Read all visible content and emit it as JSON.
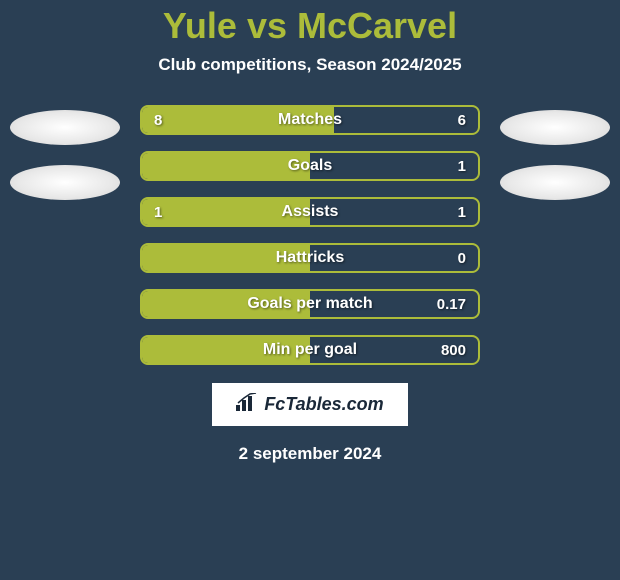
{
  "title": "Yule vs McCarvel",
  "subtitle": "Club competitions, Season 2024/2025",
  "date": "2 september 2024",
  "logo": {
    "icon": "📊",
    "text": "FcTables.com"
  },
  "colors": {
    "background": "#2a3f54",
    "accent": "#acbc3a",
    "text": "#ffffff",
    "logo_bg": "#ffffff",
    "logo_text": "#1a2838"
  },
  "stats": [
    {
      "label": "Matches",
      "left_value": "8",
      "right_value": "6",
      "left_fill_pct": 57,
      "right_fill_pct": 0
    },
    {
      "label": "Goals",
      "left_value": "",
      "right_value": "1",
      "left_fill_pct": 50,
      "right_fill_pct": 0
    },
    {
      "label": "Assists",
      "left_value": "1",
      "right_value": "1",
      "left_fill_pct": 50,
      "right_fill_pct": 0
    },
    {
      "label": "Hattricks",
      "left_value": "",
      "right_value": "0",
      "left_fill_pct": 50,
      "right_fill_pct": 0
    },
    {
      "label": "Goals per match",
      "left_value": "",
      "right_value": "0.17",
      "left_fill_pct": 50,
      "right_fill_pct": 0
    },
    {
      "label": "Min per goal",
      "left_value": "",
      "right_value": "800",
      "left_fill_pct": 50,
      "right_fill_pct": 0
    }
  ]
}
